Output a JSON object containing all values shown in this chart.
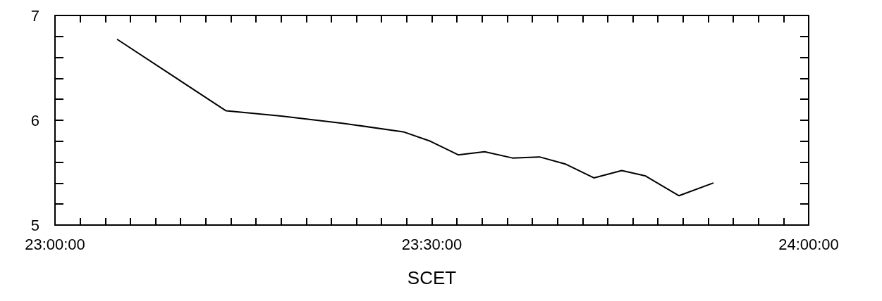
{
  "chart_data": {
    "type": "line",
    "xlabel": "SCET",
    "x": [
      23.083,
      23.227,
      23.3,
      23.383,
      23.462,
      23.498,
      23.535,
      23.57,
      23.607,
      23.643,
      23.678,
      23.715,
      23.752,
      23.783,
      23.828,
      23.873
    ],
    "values": [
      6.77,
      6.09,
      6.04,
      5.97,
      5.89,
      5.8,
      5.67,
      5.7,
      5.64,
      5.65,
      5.58,
      5.45,
      5.52,
      5.47,
      5.28,
      5.4
    ],
    "color": "#000000",
    "xlim": [
      23,
      24
    ],
    "xticks": [
      {
        "value": 23,
        "label": "23:00:00"
      },
      {
        "value": 23.0333,
        "label": null
      },
      {
        "value": 23.0667,
        "label": null
      },
      {
        "value": 23.1,
        "label": null
      },
      {
        "value": 23.1333,
        "label": null
      },
      {
        "value": 23.1667,
        "label": null
      },
      {
        "value": 23.2,
        "label": null
      },
      {
        "value": 23.2333,
        "label": null
      },
      {
        "value": 23.2667,
        "label": null
      },
      {
        "value": 23.3,
        "label": null
      },
      {
        "value": 23.3333,
        "label": null
      },
      {
        "value": 23.3667,
        "label": null
      },
      {
        "value": 23.4,
        "label": null
      },
      {
        "value": 23.4333,
        "label": null
      },
      {
        "value": 23.4667,
        "label": null
      },
      {
        "value": 23.5,
        "label": "23:30:00"
      },
      {
        "value": 23.5333,
        "label": null
      },
      {
        "value": 23.5667,
        "label": null
      },
      {
        "value": 23.6,
        "label": null
      },
      {
        "value": 23.6333,
        "label": null
      },
      {
        "value": 23.6667,
        "label": null
      },
      {
        "value": 23.7,
        "label": null
      },
      {
        "value": 23.7333,
        "label": null
      },
      {
        "value": 23.7667,
        "label": null
      },
      {
        "value": 23.8,
        "label": null
      },
      {
        "value": 23.8333,
        "label": null
      },
      {
        "value": 23.8667,
        "label": null
      },
      {
        "value": 23.9,
        "label": null
      },
      {
        "value": 23.9333,
        "label": null
      },
      {
        "value": 23.9667,
        "label": null
      },
      {
        "value": 24,
        "label": "24:00:00"
      }
    ],
    "ylim": [
      5,
      7
    ],
    "yticks": [
      5,
      {
        "value": 5.2,
        "label": null
      },
      {
        "value": 5.4,
        "label": null
      },
      {
        "value": 5.6,
        "label": null
      },
      {
        "value": 5.8,
        "label": null
      },
      6,
      {
        "value": 6.2,
        "label": null
      },
      {
        "value": 6.4,
        "label": null
      },
      {
        "value": 6.6,
        "label": null
      },
      {
        "value": 6.8,
        "label": null
      },
      7
    ],
    "grid": false,
    "marker": "none",
    "line_style": "solid"
  }
}
